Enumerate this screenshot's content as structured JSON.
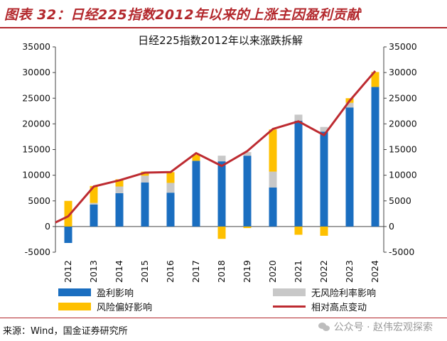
{
  "figure_title": "图表 32：日经225指数2012年以来的上涨主因盈利贡献",
  "source": "来源：Wind，国金证券研究所",
  "watermark": "公众号 · 赵伟宏观探索",
  "colors": {
    "earnings": "#1a6ec0",
    "riskfree": "#c8c8c8",
    "riskpremium": "#fec000",
    "line": "#bd2b31",
    "title": "#b3282d"
  },
  "chart_data": {
    "type": "bar",
    "stacked": true,
    "title": "日经225指数2012年以来涨跌拆解",
    "categories": [
      "2012",
      "2013",
      "2014",
      "2015",
      "2016",
      "2017",
      "2018",
      "2019",
      "2020",
      "2021",
      "2022",
      "2023",
      "2024"
    ],
    "series": [
      {
        "name": "盈利影响",
        "kind": "bar",
        "color": "#1a6ec0",
        "values": [
          -3200,
          4300,
          6500,
          8600,
          6600,
          12800,
          12700,
          13800,
          7600,
          20600,
          18500,
          23200,
          27200
        ]
      },
      {
        "name": "无风险利率影响",
        "kind": "bar",
        "color": "#c8c8c8",
        "values": [
          0,
          300,
          1300,
          1300,
          1900,
          0,
          1100,
          700,
          3100,
          1200,
          900,
          900,
          0
        ]
      },
      {
        "name": "风险偏好影响",
        "kind": "bar",
        "color": "#fec000",
        "values": [
          5000,
          3300,
          1400,
          800,
          2100,
          1200,
          -2400,
          -300,
          8200,
          -1600,
          -1800,
          900,
          2900
        ]
      },
      {
        "name": "相对高点变动",
        "kind": "line",
        "color": "#bd2b31",
        "values": [
          2000,
          7800,
          9000,
          10500,
          10600,
          14300,
          11800,
          14700,
          19000,
          20500,
          17800,
          24500,
          30300
        ]
      }
    ],
    "line_x_extension": {
      "start_value": 800
    },
    "ylim": [
      -5000,
      35000
    ],
    "yticks": [
      -5000,
      0,
      5000,
      10000,
      15000,
      20000,
      25000,
      30000,
      35000
    ],
    "ytick_labels_left": [
      "-5000",
      "0",
      "5000",
      "10000",
      "15000",
      "20000",
      "25000",
      "30000",
      "35000"
    ],
    "ytick_labels_right": [
      "-5000",
      "0",
      "5000",
      "10000",
      "15000",
      "20000",
      "25000",
      "30000",
      "35000"
    ],
    "grid": false,
    "legend_position": "bottom"
  }
}
